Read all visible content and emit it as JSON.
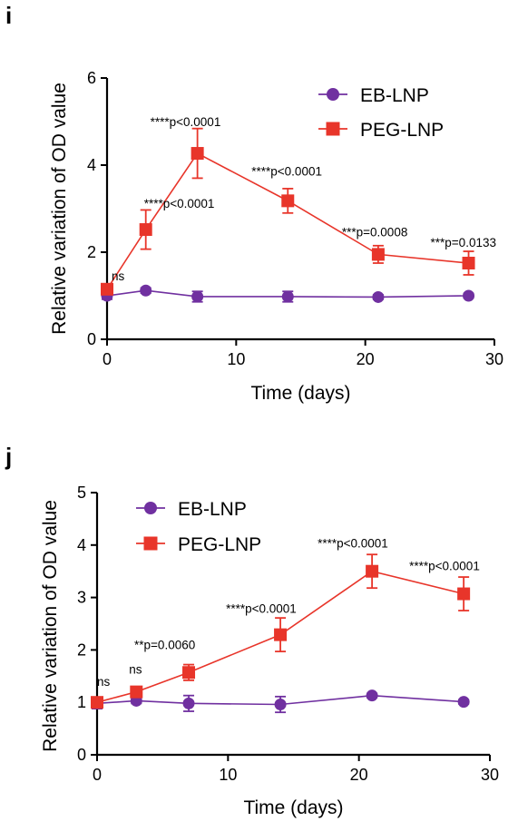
{
  "panels": [
    {
      "letter": "i"
    },
    {
      "letter": "j"
    }
  ],
  "chart_data": [
    {
      "type": "line",
      "title": "",
      "xlabel": "Time (days)",
      "ylabel": "Relative variation of OD value",
      "xlim": [
        0,
        30
      ],
      "ylim": [
        0,
        6
      ],
      "xticks": [
        0,
        10,
        20,
        30
      ],
      "yticks": [
        0,
        2,
        4,
        6
      ],
      "grid": false,
      "legend_position": "top-right",
      "series": [
        {
          "name": "EB-LNP",
          "color": "#7030A0",
          "marker": "circle",
          "x": [
            0,
            3,
            7,
            14,
            21,
            28
          ],
          "values": [
            1.0,
            1.12,
            0.98,
            0.98,
            0.97,
            1.0
          ],
          "errors": [
            0.08,
            0.06,
            0.12,
            0.12,
            0.05,
            0.05
          ]
        },
        {
          "name": "PEG-LNP",
          "color": "#E8352A",
          "marker": "square",
          "x": [
            0,
            3,
            7,
            14,
            21,
            28
          ],
          "values": [
            1.15,
            2.52,
            4.27,
            3.18,
            1.95,
            1.75
          ],
          "errors": [
            0.12,
            0.45,
            0.57,
            0.28,
            0.2,
            0.27
          ]
        }
      ],
      "annotations": [
        {
          "text": "ns",
          "x": 0,
          "y": 1.15
        },
        {
          "text": "****p<0.0001",
          "x": 3,
          "y": 2.52
        },
        {
          "text": "****p<0.0001",
          "x": 7,
          "y": 4.27
        },
        {
          "text": "****p<0.0001",
          "x": 14,
          "y": 3.18
        },
        {
          "text": "***p=0.0008",
          "x": 21,
          "y": 1.95
        },
        {
          "text": "***p=0.0133",
          "x": 28,
          "y": 1.75
        }
      ]
    },
    {
      "type": "line",
      "title": "",
      "xlabel": "Time (days)",
      "ylabel": "Relative variation of OD value",
      "xlim": [
        0,
        30
      ],
      "ylim": [
        0,
        5
      ],
      "xticks": [
        0,
        10,
        20,
        30
      ],
      "yticks": [
        0,
        1,
        2,
        3,
        4,
        5
      ],
      "grid": false,
      "legend_position": "top-left",
      "series": [
        {
          "name": "EB-LNP",
          "color": "#7030A0",
          "marker": "circle",
          "x": [
            0,
            3,
            7,
            14,
            21,
            28
          ],
          "values": [
            0.98,
            1.03,
            0.98,
            0.96,
            1.13,
            1.01
          ],
          "errors": [
            0.1,
            0.05,
            0.15,
            0.15,
            0.04,
            0.04
          ]
        },
        {
          "name": "PEG-LNP",
          "color": "#E8352A",
          "marker": "square",
          "x": [
            0,
            3,
            7,
            14,
            21,
            28
          ],
          "values": [
            1.0,
            1.2,
            1.57,
            2.29,
            3.5,
            3.07
          ],
          "errors": [
            0.08,
            0.1,
            0.15,
            0.32,
            0.32,
            0.32
          ]
        }
      ],
      "annotations": [
        {
          "text": "ns",
          "x": 0,
          "y": 1.0
        },
        {
          "text": "ns",
          "x": 3,
          "y": 1.2
        },
        {
          "text": "**p=0.0060",
          "x": 7,
          "y": 1.57
        },
        {
          "text": "****p<0.0001",
          "x": 14,
          "y": 2.29
        },
        {
          "text": "****p<0.0001",
          "x": 21,
          "y": 3.5
        },
        {
          "text": "****p<0.0001",
          "x": 28,
          "y": 3.07
        }
      ]
    }
  ]
}
